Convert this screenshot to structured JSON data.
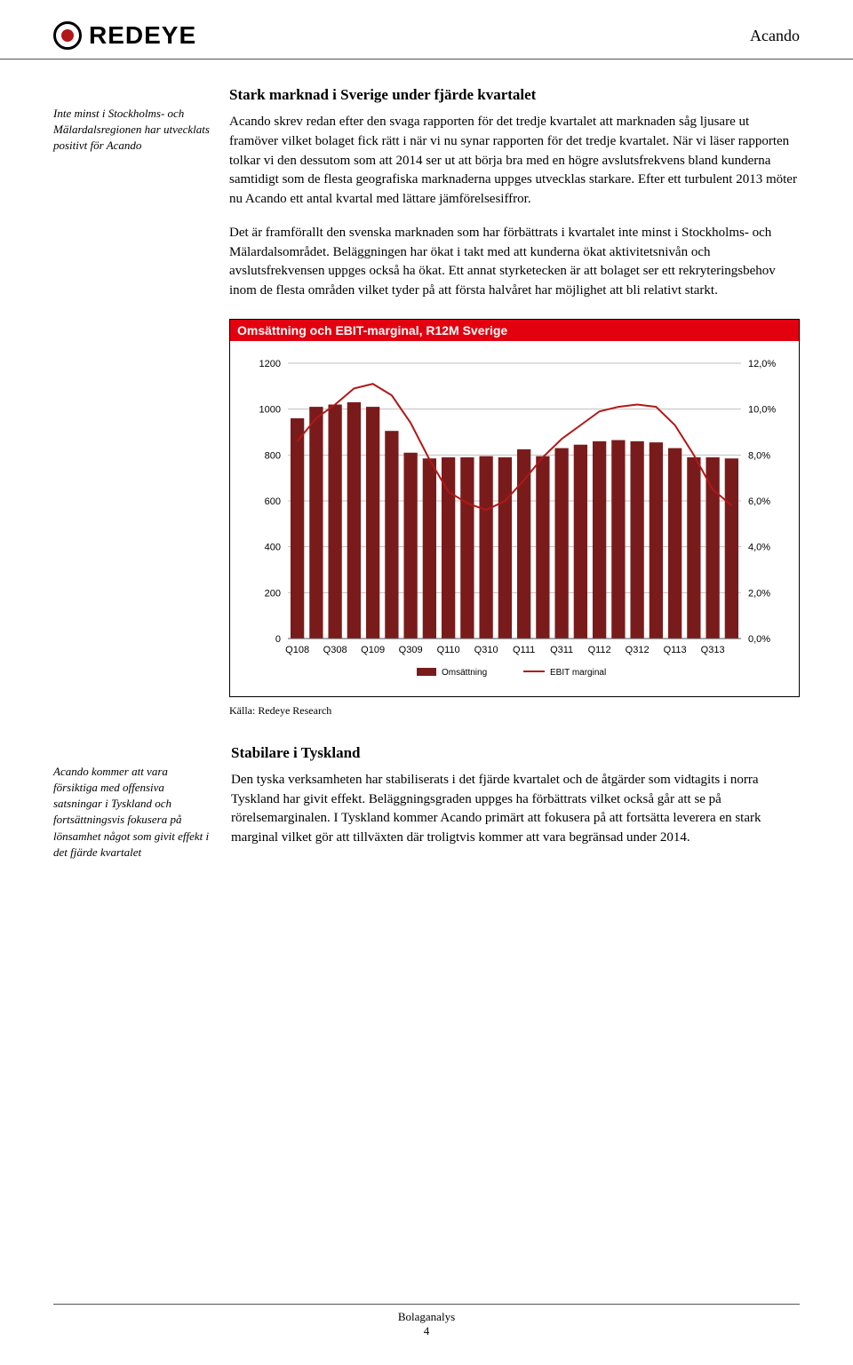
{
  "header": {
    "brand": "REDEYE",
    "company": "Acando"
  },
  "sidebar1": "Inte minst i Stockholms- och Mälardalsregionen har utvecklats positivt för Acando",
  "section1": {
    "title": "Stark marknad i Sverige under fjärde kvartalet",
    "p1": "Acando skrev redan efter den svaga rapporten för det tredje kvartalet att marknaden såg ljusare ut framöver vilket bolaget fick rätt i när vi nu synar rapporten för det tredje kvartalet. När vi läser rapporten tolkar vi den dessutom som att 2014 ser ut att börja bra med en högre avslutsfrekvens bland kunderna samtidigt som de flesta geografiska marknaderna uppges utvecklas starkare. Efter ett turbulent 2013 möter nu Acando ett antal kvartal med lättare jämförelsesiffror.",
    "p2": "Det är framförallt den svenska marknaden som har förbättrats i kvartalet inte minst i Stockholms- och Mälardalsområdet. Beläggningen har ökat i takt med att kunderna ökat aktivitetsnivån och avslutsfrekvensen uppges också ha ökat. Ett annat styrketecken är att bolaget ser ett rekryteringsbehov inom de flesta områden vilket tyder på att första halvåret har möjlighet att bli relativt starkt."
  },
  "chart": {
    "title": "Omsättning och EBIT-marginal, R12M Sverige",
    "type": "bar+line",
    "y1_max": 1200,
    "y1_ticks": [
      0,
      200,
      400,
      600,
      800,
      1000,
      1200
    ],
    "y2_ticks": [
      "0,0%",
      "2,0%",
      "4,0%",
      "6,0%",
      "8,0%",
      "10,0%",
      "12,0%"
    ],
    "x_labels": [
      "Q108",
      "Q308",
      "Q109",
      "Q309",
      "Q110",
      "Q310",
      "Q111",
      "Q311",
      "Q112",
      "Q312",
      "Q113",
      "Q313"
    ],
    "bars": [
      960,
      1010,
      1020,
      1030,
      1010,
      905,
      810,
      785,
      790,
      790,
      795,
      790,
      825,
      795,
      830,
      845,
      860,
      865,
      860,
      855,
      830,
      790,
      790,
      785
    ],
    "line": [
      8.6,
      9.6,
      10.2,
      10.9,
      11.1,
      10.6,
      9.4,
      7.8,
      6.4,
      5.9,
      5.6,
      6.0,
      6.9,
      7.9,
      8.7,
      9.3,
      9.9,
      10.1,
      10.2,
      10.1,
      9.3,
      8.0,
      6.5,
      5.8
    ],
    "bar_color": "#7a1b1b",
    "line_color": "#b01818",
    "grid_color": "#bfbfbf",
    "axis_color": "#555555",
    "tick_font": 11,
    "legend": {
      "series1": "Omsättning",
      "series2": "EBIT marginal"
    },
    "source": "Källa: Redeye Research"
  },
  "sidebar2": "Acando kommer att vara försiktiga med offensiva satsningar i Tyskland och fortsättningsvis fokusera på lönsamhet något som givit effekt i det fjärde kvartalet",
  "section2": {
    "title": "Stabilare i Tyskland",
    "p1": "Den tyska verksamheten har stabiliserats i det fjärde kvartalet och de åtgärder som vidtagits i norra Tyskland har givit effekt. Beläggningsgraden uppges ha förbättrats vilket också går att se på rörelsemarginalen. I Tyskland kommer Acando primärt att fokusera på att fortsätta leverera en stark marginal vilket gör att tillväxten där troligtvis kommer att vara begränsad under 2014."
  },
  "footer": {
    "label": "Bolaganalys",
    "page": "4"
  }
}
